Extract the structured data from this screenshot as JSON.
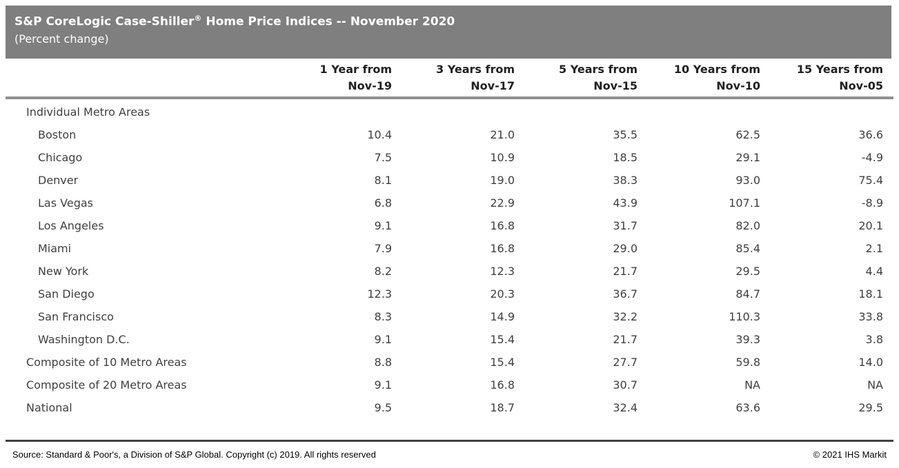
{
  "header": {
    "title_main": "S&P CoreLogic Case-Shiller",
    "title_reg": "®",
    "title_rest": " Home Price Indices -- November 2020",
    "subtitle": "(Percent change)"
  },
  "colors": {
    "band_background": "#7f7f7f",
    "header_rule": "#909090",
    "footer_rule": "#404040",
    "body_text": "#3f3f3f"
  },
  "chart_data": {
    "type": "table",
    "title": "S&P CoreLogic Case-Shiller® Home Price Indices -- November 2020",
    "subtitle": "(Percent change)",
    "columns": [
      {
        "line1": "1 Year from",
        "line2": "Nov-19"
      },
      {
        "line1": "3 Years from",
        "line2": "Nov-17"
      },
      {
        "line1": "5 Years from",
        "line2": "Nov-15"
      },
      {
        "line1": "10 Years from",
        "line2": "Nov-10"
      },
      {
        "line1": "15 Years from",
        "line2": "Nov-05"
      }
    ],
    "rows": [
      {
        "label": "Individual Metro Areas",
        "indent": "section",
        "values": [
          "",
          "",
          "",
          "",
          ""
        ]
      },
      {
        "label": "Boston",
        "indent": "city",
        "values": [
          "10.4",
          "21.0",
          "35.5",
          "62.5",
          "36.6"
        ]
      },
      {
        "label": "Chicago",
        "indent": "city",
        "values": [
          "7.5",
          "10.9",
          "18.5",
          "29.1",
          "-4.9"
        ]
      },
      {
        "label": "Denver",
        "indent": "city",
        "values": [
          "8.1",
          "19.0",
          "38.3",
          "93.0",
          "75.4"
        ]
      },
      {
        "label": "Las Vegas",
        "indent": "city",
        "values": [
          "6.8",
          "22.9",
          "43.9",
          "107.1",
          "-8.9"
        ]
      },
      {
        "label": "Los Angeles",
        "indent": "city",
        "values": [
          "9.1",
          "16.8",
          "31.7",
          "82.0",
          "20.1"
        ]
      },
      {
        "label": "Miami",
        "indent": "city",
        "values": [
          "7.9",
          "16.8",
          "29.0",
          "85.4",
          "2.1"
        ]
      },
      {
        "label": "New York",
        "indent": "city",
        "values": [
          "8.2",
          "12.3",
          "21.7",
          "29.5",
          "4.4"
        ]
      },
      {
        "label": "San Diego",
        "indent": "city",
        "values": [
          "12.3",
          "20.3",
          "36.7",
          "84.7",
          "18.1"
        ]
      },
      {
        "label": "San Francisco",
        "indent": "city",
        "values": [
          "8.3",
          "14.9",
          "32.2",
          "110.3",
          "33.8"
        ]
      },
      {
        "label": "Washington D.C.",
        "indent": "city",
        "values": [
          "9.1",
          "15.4",
          "21.7",
          "39.3",
          "3.8"
        ]
      },
      {
        "label": "Composite of 10 Metro Areas",
        "indent": "section",
        "values": [
          "8.8",
          "15.4",
          "27.7",
          "59.8",
          "14.0"
        ]
      },
      {
        "label": "Composite of 20 Metro Areas",
        "indent": "section",
        "values": [
          "9.1",
          "16.8",
          "30.7",
          "NA",
          "NA"
        ]
      },
      {
        "label": "National",
        "indent": "section",
        "values": [
          "9.5",
          "18.7",
          "32.4",
          "63.6",
          "29.5"
        ]
      }
    ]
  },
  "footer": {
    "source": "Source: Standard & Poor's, a Division of S&P Global. Copyright (c) 2019. All rights reserved",
    "copyright": "© 2021 IHS Markit"
  }
}
